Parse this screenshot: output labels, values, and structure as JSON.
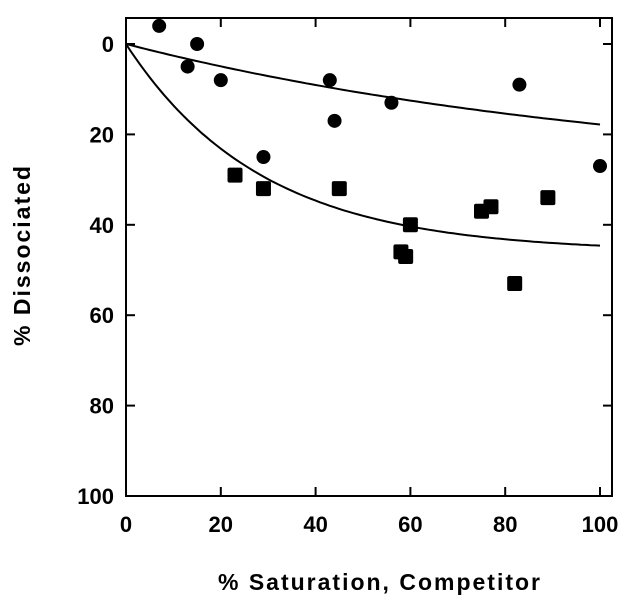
{
  "chart_data": {
    "type": "scatter",
    "title": "",
    "xlabel": "%  Saturation, Competitor",
    "ylabel": "%  Dissociated",
    "xlim": [
      0,
      100
    ],
    "ylim": [
      0,
      100
    ],
    "y_inverted": true,
    "x_ticks": [
      "0",
      "20",
      "40",
      "60",
      "80",
      "100"
    ],
    "y_ticks": [
      "0",
      "20",
      "40",
      "60",
      "80",
      "100"
    ],
    "grid": false,
    "legend": "none",
    "series": [
      {
        "marker": "circle",
        "color": "#000000",
        "points": [
          [
            7,
            -4
          ],
          [
            15,
            0
          ],
          [
            13,
            5
          ],
          [
            20,
            8
          ],
          [
            29,
            25
          ],
          [
            43,
            8
          ],
          [
            44,
            17
          ],
          [
            56,
            13
          ],
          [
            83,
            9
          ],
          [
            100,
            27
          ]
        ]
      },
      {
        "marker": "square",
        "color": "#000000",
        "points": [
          [
            23,
            29
          ],
          [
            29,
            32
          ],
          [
            45,
            32
          ],
          [
            58,
            46
          ],
          [
            59,
            47
          ],
          [
            60,
            40
          ],
          [
            75,
            37
          ],
          [
            77,
            36
          ],
          [
            82,
            53
          ],
          [
            89,
            34
          ]
        ]
      }
    ],
    "fit_curves": [
      {
        "kind": "saturating",
        "asymptote": 30,
        "rate": 0.009,
        "x_range": [
          0,
          100
        ]
      },
      {
        "kind": "saturating",
        "asymptote": 46,
        "rate": 0.035,
        "x_range": [
          0,
          100
        ]
      }
    ]
  }
}
